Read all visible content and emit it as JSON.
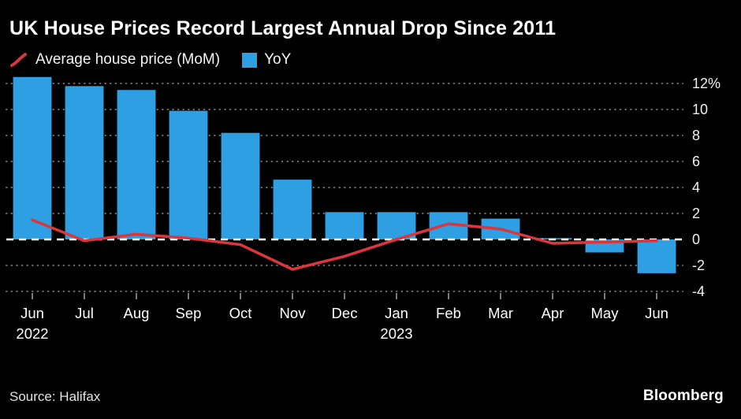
{
  "title": "UK House Prices Record Largest Annual Drop Since 2011",
  "legend": {
    "line_label": "Average house price (MoM)",
    "bar_label": "YoY"
  },
  "source": "Source: Halifax",
  "brand": "Bloomberg",
  "colors": {
    "background": "#000000",
    "bar": "#2d9fe2",
    "line": "#d9363e",
    "grid": "#6e6e6e",
    "zero_line": "#ffffff",
    "tick_text": "#f0f0f0",
    "axis_text": "#ffffff"
  },
  "chart_data": {
    "type": "bar+line",
    "title": "UK House Prices Record Largest Annual Drop Since 2011",
    "categories": [
      "Jun",
      "Jul",
      "Aug",
      "Sep",
      "Oct",
      "Nov",
      "Dec",
      "Jan",
      "Feb",
      "Mar",
      "Apr",
      "May",
      "Jun"
    ],
    "category_sublabels": [
      "2022",
      "",
      "",
      "",
      "",
      "",
      "",
      "2023",
      "",
      "",
      "",
      "",
      ""
    ],
    "series": [
      {
        "name": "YoY",
        "type": "bar",
        "values": [
          12.5,
          11.8,
          11.5,
          9.9,
          8.2,
          4.6,
          2.1,
          2.1,
          2.1,
          1.6,
          0.1,
          -1.0,
          -2.6
        ]
      },
      {
        "name": "Average house price (MoM)",
        "type": "line",
        "values": [
          1.5,
          -0.1,
          0.4,
          0.1,
          -0.4,
          -2.3,
          -1.3,
          0.0,
          1.2,
          0.8,
          -0.3,
          -0.2,
          -0.1
        ]
      }
    ],
    "ylim": [
      -4,
      13
    ],
    "yticks": [
      12,
      10,
      8,
      6,
      4,
      2,
      0,
      -2,
      -4
    ],
    "ytick_labels": [
      "12%",
      "10",
      "8",
      "6",
      "4",
      "2",
      "0",
      "-2",
      "-4"
    ],
    "grid": "dotted-horizontal",
    "zero_line": "dashed-white",
    "legend_position": "top-left",
    "xlabel": "",
    "ylabel": ""
  }
}
